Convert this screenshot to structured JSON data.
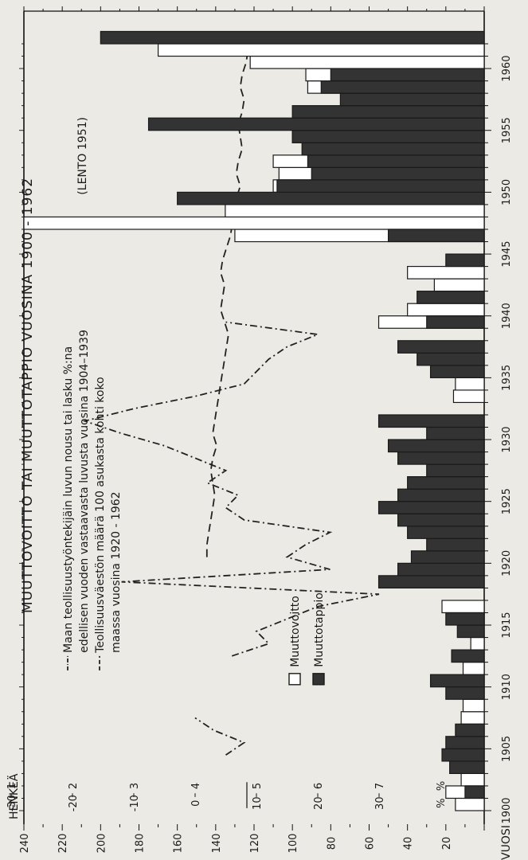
{
  "chart_data": {
    "type": "bar",
    "title": "MUUTTOVOITTO TAI MUUTTOTAPPIO VUOSINA 1900 - 1962",
    "ylabel": "HENKEÄ",
    "xlabel": "VUOSI",
    "xlim": [
      1900,
      1962
    ],
    "ylim": [
      0,
      240
    ],
    "x_ticks": [
      1900,
      1905,
      1910,
      1915,
      1920,
      1925,
      1930,
      1935,
      1940,
      1945,
      1950,
      1955,
      1960
    ],
    "y_ticks": [
      20,
      40,
      60,
      80,
      100,
      120,
      140,
      160,
      180,
      200,
      220,
      240
    ],
    "annotation": "(LENTO 1951)",
    "series": [
      {
        "name": "Muuttovoitto",
        "color": "#ffffff",
        "values": [
          {
            "year": 1900,
            "value": 15
          },
          {
            "year": 1901,
            "value": 20
          },
          {
            "year": 1902,
            "value": 12
          },
          {
            "year": 1907,
            "value": 12
          },
          {
            "year": 1908,
            "value": 11
          },
          {
            "year": 1911,
            "value": 11
          },
          {
            "year": 1913,
            "value": 7
          },
          {
            "year": 1915,
            "value": 12
          },
          {
            "year": 1916,
            "value": 22
          },
          {
            "year": 1922,
            "value": 20
          },
          {
            "year": 1929,
            "value": 33
          },
          {
            "year": 1933,
            "value": 16
          },
          {
            "year": 1934,
            "value": 15
          },
          {
            "year": 1939,
            "value": 55
          },
          {
            "year": 1940,
            "value": 40
          },
          {
            "year": 1942,
            "value": 26
          },
          {
            "year": 1943,
            "value": 40
          },
          {
            "year": 1946,
            "value": 130
          },
          {
            "year": 1947,
            "value": 240
          },
          {
            "year": 1948,
            "value": 135
          },
          {
            "year": 1950,
            "value": 110
          },
          {
            "year": 1951,
            "value": 107
          },
          {
            "year": 1952,
            "value": 110
          },
          {
            "year": 1954,
            "value": 100
          },
          {
            "year": 1955,
            "value": 92
          },
          {
            "year": 1958,
            "value": 92
          },
          {
            "year": 1959,
            "value": 93
          },
          {
            "year": 1960,
            "value": 122
          },
          {
            "year": 1961,
            "value": 170
          }
        ]
      },
      {
        "name": "Muuttotappio",
        "color": "#333333",
        "values": [
          {
            "year": 1901,
            "value": 10
          },
          {
            "year": 1903,
            "value": 18
          },
          {
            "year": 1904,
            "value": 22
          },
          {
            "year": 1905,
            "value": 20
          },
          {
            "year": 1906,
            "value": 15
          },
          {
            "year": 1910,
            "value": 28
          },
          {
            "year": 1909,
            "value": 20
          },
          {
            "year": 1912,
            "value": 17
          },
          {
            "year": 1914,
            "value": 14
          },
          {
            "year": 1915,
            "value": 20
          },
          {
            "year": 1918,
            "value": 55
          },
          {
            "year": 1919,
            "value": 45
          },
          {
            "year": 1920,
            "value": 38
          },
          {
            "year": 1921,
            "value": 30
          },
          {
            "year": 1922,
            "value": 40
          },
          {
            "year": 1923,
            "value": 45
          },
          {
            "year": 1924,
            "value": 55
          },
          {
            "year": 1925,
            "value": 45
          },
          {
            "year": 1926,
            "value": 40
          },
          {
            "year": 1927,
            "value": 30
          },
          {
            "year": 1928,
            "value": 45
          },
          {
            "year": 1929,
            "value": 50
          },
          {
            "year": 1930,
            "value": 30
          },
          {
            "year": 1931,
            "value": 55
          },
          {
            "year": 1935,
            "value": 28
          },
          {
            "year": 1936,
            "value": 35
          },
          {
            "year": 1937,
            "value": 45
          },
          {
            "year": 1939,
            "value": 30
          },
          {
            "year": 1941,
            "value": 35
          },
          {
            "year": 1944,
            "value": 20
          },
          {
            "year": 1946,
            "value": 50
          },
          {
            "year": 1949,
            "value": 160
          },
          {
            "year": 1950,
            "value": 108
          },
          {
            "year": 1951,
            "value": 90
          },
          {
            "year": 1952,
            "value": 92
          },
          {
            "year": 1953,
            "value": 95
          },
          {
            "year": 1954,
            "value": 100
          },
          {
            "year": 1955,
            "value": 175
          },
          {
            "year": 1956,
            "value": 100
          },
          {
            "year": 1957,
            "value": 75
          },
          {
            "year": 1958,
            "value": 85
          },
          {
            "year": 1959,
            "value": 80
          },
          {
            "year": 1962,
            "value": 200
          }
        ]
      }
    ],
    "lines": [
      {
        "name": "Maan teollisuustyöntekijäin luvun nousu tai lasku %:na edellisen vuoden vastaavasta luvusta vuosina 1904–1939",
        "style": "dash-dot",
        "axis": "%",
        "points": [
          [
            1904,
            5
          ],
          [
            1905,
            8
          ],
          [
            1906,
            3
          ],
          [
            1907,
            0
          ],
          [
            1912,
            6
          ],
          [
            1913,
            12
          ],
          [
            1914,
            10
          ],
          [
            1915,
            15
          ],
          [
            1916,
            20
          ],
          [
            1917,
            30
          ],
          [
            1918,
            -12
          ],
          [
            1919,
            22
          ],
          [
            1920,
            15
          ],
          [
            1921,
            18
          ],
          [
            1922,
            22
          ],
          [
            1923,
            8
          ],
          [
            1924,
            5
          ],
          [
            1925,
            7
          ],
          [
            1926,
            2
          ],
          [
            1927,
            5
          ],
          [
            1928,
            0
          ],
          [
            1929,
            -5
          ],
          [
            1930,
            -12
          ],
          [
            1931,
            -18
          ],
          [
            1932,
            -10
          ],
          [
            1933,
            0
          ],
          [
            1934,
            8
          ],
          [
            1935,
            10
          ],
          [
            1936,
            12
          ],
          [
            1937,
            15
          ],
          [
            1938,
            20
          ],
          [
            1939,
            5
          ]
        ]
      },
      {
        "name": "Teollisuusväestön määrä 100 asukasta kohti koko maassa vuosina 1920 - 1962",
        "style": "dashed",
        "axis": "koko",
        "points": [
          [
            1920,
            4.6
          ],
          [
            1921,
            4.6
          ],
          [
            1922,
            4.7
          ],
          [
            1923,
            4.8
          ],
          [
            1924,
            4.9
          ],
          [
            1925,
            5.0
          ],
          [
            1926,
            4.9
          ],
          [
            1927,
            4.8
          ],
          [
            1928,
            4.9
          ],
          [
            1929,
            5.1
          ],
          [
            1930,
            4.9
          ],
          [
            1931,
            5.0
          ],
          [
            1932,
            5.1
          ],
          [
            1933,
            5.2
          ],
          [
            1934,
            5.3
          ],
          [
            1935,
            5.4
          ],
          [
            1936,
            5.5
          ],
          [
            1937,
            5.6
          ],
          [
            1938,
            5.7
          ],
          [
            1939,
            5.5
          ],
          [
            1940,
            5.3
          ],
          [
            1941,
            5.4
          ],
          [
            1942,
            5.5
          ],
          [
            1943,
            5.3
          ],
          [
            1944,
            5.4
          ],
          [
            1945,
            5.6
          ],
          [
            1946,
            5.8
          ],
          [
            1947,
            5.9
          ],
          [
            1948,
            6.0
          ],
          [
            1949,
            6.1
          ],
          [
            1950,
            6.3
          ],
          [
            1951,
            6.1
          ],
          [
            1952,
            6.2
          ],
          [
            1953,
            6.4
          ],
          [
            1954,
            6.3
          ],
          [
            1955,
            6.2
          ],
          [
            1956,
            6.4
          ],
          [
            1957,
            6.5
          ],
          [
            1958,
            6.3
          ],
          [
            1959,
            6.4
          ],
          [
            1960,
            6.6
          ],
          [
            1961,
            6.7
          ],
          [
            1962,
            6.8
          ]
        ]
      }
    ],
    "inset_axis": {
      "pct_label": "%",
      "koko_label": "%",
      "pct_ticks": [
        "30",
        "20",
        "10",
        "0",
        "-10",
        "-20",
        "-30"
      ],
      "koko_ticks": [
        "7",
        "6",
        "5",
        "4",
        "3",
        "2",
        "1"
      ]
    },
    "legend": [
      {
        "label": "Maan teollisuustyöntekijäin luvun nousu tai lasku %:na",
        "style": "dash-dot"
      },
      {
        "label": "edellisen vuoden vastaavasta luvusta vuosina 1904–1939",
        "style": "none"
      },
      {
        "label": "Teollisuusväestön määrä 100 asukasta kohti koko",
        "style": "dashed"
      },
      {
        "label": "maassa vuosina 1920 - 1962",
        "style": "none"
      }
    ],
    "bar_legend": [
      {
        "label": "Muuttovoitto",
        "color": "#ffffff"
      },
      {
        "label": "Muuttotappio",
        "color": "#333333"
      }
    ]
  }
}
